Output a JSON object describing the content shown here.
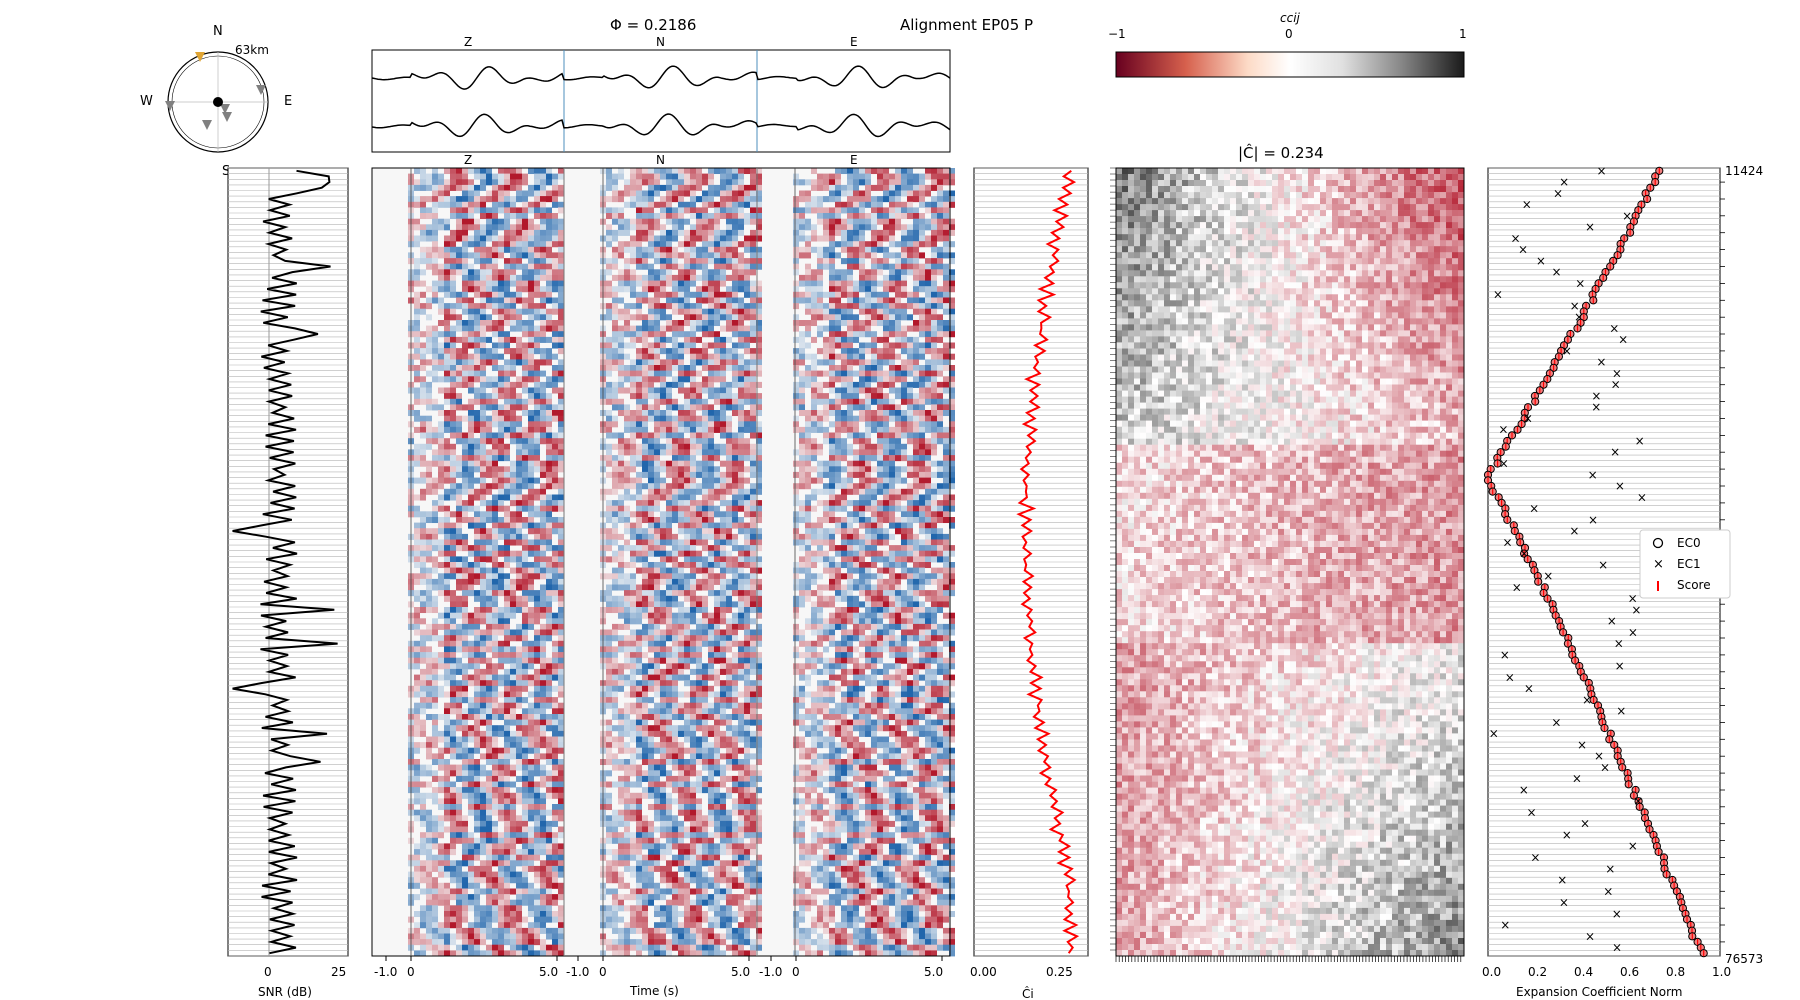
{
  "figure": {
    "title": "Alignment EP05 P",
    "phi_label": "Φ = 0.2186",
    "cmatrix_title": "|Ĉ| = 0.234"
  },
  "compass": {
    "north": "N",
    "south": "S",
    "east": "E",
    "west": "W",
    "distance": "63km",
    "highlight_color": "#e0a534",
    "station_color": "#808080"
  },
  "stack": {
    "components": [
      "Z",
      "N",
      "E"
    ],
    "trace_count": 2
  },
  "colorbar": {
    "label": "ccij",
    "ticks": [
      "−1",
      "0",
      "1"
    ],
    "colormap": [
      "#67001f",
      "#d6604d",
      "#fddbc7",
      "#ffffff",
      "#e0e0e0",
      "#878787",
      "#1a1a1a"
    ]
  },
  "chart_data": [
    {
      "type": "line",
      "name": "snr-panel",
      "xlabel": "SNR (dB)",
      "xticks": [
        "0",
        "25"
      ],
      "xlim": [
        -22,
        30
      ],
      "n_traces": 140,
      "reference_line_x": 0,
      "pattern": "alternating positive/negative SNR values per event row; large spikes near rows 2, 18, 78, 100"
    },
    {
      "type": "heatmap",
      "name": "waveform-panel",
      "xlabel": "Time (s)",
      "components": [
        "Z",
        "N",
        "E"
      ],
      "xticks_each": [
        "-1.0",
        "0",
        "5.0"
      ],
      "xlim_each": [
        -1.0,
        5.0
      ],
      "colors": {
        "positive": "#b2182b",
        "negative": "#2166ac",
        "zero": "#f7f7f7"
      }
    },
    {
      "type": "line",
      "name": "ci-panel",
      "xlabel": "Ĉi",
      "xticks": [
        "0.00",
        "0.25"
      ],
      "xlim": [
        -0.02,
        0.4
      ],
      "color": "#ff0000",
      "range": [
        0.12,
        0.37
      ]
    },
    {
      "type": "heatmap",
      "name": "correlation-matrix",
      "title": "|Ĉ| = 0.234",
      "value_range": [
        -1,
        1
      ]
    },
    {
      "type": "scatter",
      "name": "expansion-coefficients",
      "xlabel": "Expansion Coefficient Norm",
      "xticks": [
        "0.0",
        "0.2",
        "0.4",
        "0.6",
        "0.8",
        "1.0"
      ],
      "xlim": [
        0.0,
        1.0
      ],
      "legend": [
        "EC0",
        "EC1",
        "Score"
      ],
      "legend_position": "right",
      "top_event_label": "11424",
      "bottom_event_label": "76573"
    }
  ]
}
